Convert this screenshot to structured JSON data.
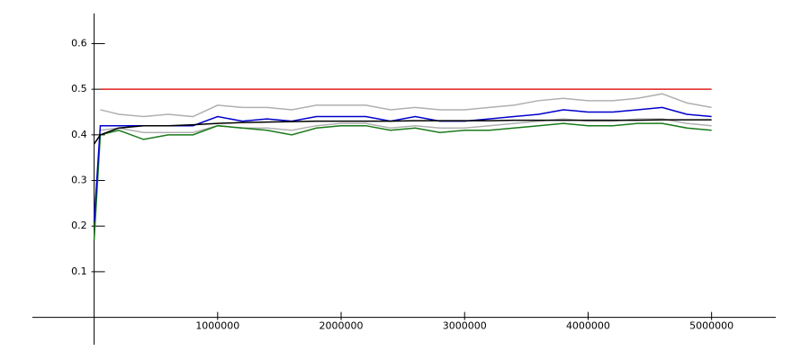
{
  "chart_data": {
    "type": "line",
    "x": [
      0,
      50000,
      200000,
      400000,
      600000,
      800000,
      1000000,
      1200000,
      1400000,
      1600000,
      1800000,
      2000000,
      2200000,
      2400000,
      2600000,
      2800000,
      3000000,
      3200000,
      3400000,
      3600000,
      3800000,
      4000000,
      4200000,
      4400000,
      4600000,
      4800000,
      5000000
    ],
    "series": [
      {
        "color": "#b0b0b0",
        "values": [
          null,
          0.455,
          0.445,
          0.44,
          0.445,
          0.44,
          0.465,
          0.46,
          0.46,
          0.455,
          0.465,
          0.465,
          0.465,
          0.455,
          0.46,
          0.455,
          0.455,
          0.46,
          0.465,
          0.475,
          0.48,
          0.475,
          0.475,
          0.48,
          0.49,
          0.47,
          0.46
        ]
      },
      {
        "color": "#b0b0b0",
        "values": [
          null,
          0.41,
          0.415,
          0.405,
          0.405,
          0.405,
          0.42,
          0.415,
          0.415,
          0.41,
          0.42,
          0.425,
          0.425,
          0.415,
          0.42,
          0.415,
          0.415,
          0.42,
          0.425,
          0.43,
          0.435,
          0.43,
          0.43,
          0.435,
          0.435,
          0.425,
          0.42
        ]
      },
      {
        "color": "#e02020",
        "values": [
          null,
          0.5,
          0.5,
          0.5,
          0.5,
          0.5,
          0.5,
          0.5,
          0.5,
          0.5,
          0.5,
          0.5,
          0.5,
          0.5,
          0.5,
          0.5,
          0.5,
          0.5,
          0.5,
          0.5,
          0.5,
          0.5,
          0.5,
          0.5,
          0.5,
          0.5,
          0.5
        ]
      },
      {
        "color": "#1a7a1a",
        "values": [
          0.17,
          0.4,
          0.41,
          0.39,
          0.4,
          0.4,
          0.42,
          0.415,
          0.41,
          0.4,
          0.415,
          0.42,
          0.42,
          0.41,
          0.415,
          0.405,
          0.41,
          0.41,
          0.415,
          0.42,
          0.425,
          0.42,
          0.42,
          0.425,
          0.425,
          0.415,
          0.41
        ]
      },
      {
        "color": "#0000cc",
        "values": [
          0.21,
          0.42,
          0.42,
          0.42,
          0.42,
          0.42,
          0.44,
          0.43,
          0.435,
          0.43,
          0.44,
          0.44,
          0.44,
          0.43,
          0.44,
          0.43,
          0.43,
          0.435,
          0.44,
          0.445,
          0.455,
          0.45,
          0.45,
          0.455,
          0.46,
          0.445,
          0.44
        ]
      },
      {
        "color": "#000000",
        "values": [
          0.38,
          0.4,
          0.415,
          0.42,
          0.42,
          0.422,
          0.425,
          0.427,
          0.428,
          0.429,
          0.43,
          0.43,
          0.43,
          0.43,
          0.431,
          0.431,
          0.431,
          0.431,
          0.432,
          0.432,
          0.432,
          0.432,
          0.432,
          0.432,
          0.433,
          0.433,
          0.433
        ]
      }
    ],
    "xlim": [
      -500000,
      5520000
    ],
    "ylim": [
      -0.06,
      0.666
    ],
    "xticks": [
      1000000,
      2000000,
      3000000,
      4000000,
      5000000
    ],
    "yticks": [
      0.1,
      0.2,
      0.3,
      0.4,
      0.5,
      0.6
    ]
  }
}
